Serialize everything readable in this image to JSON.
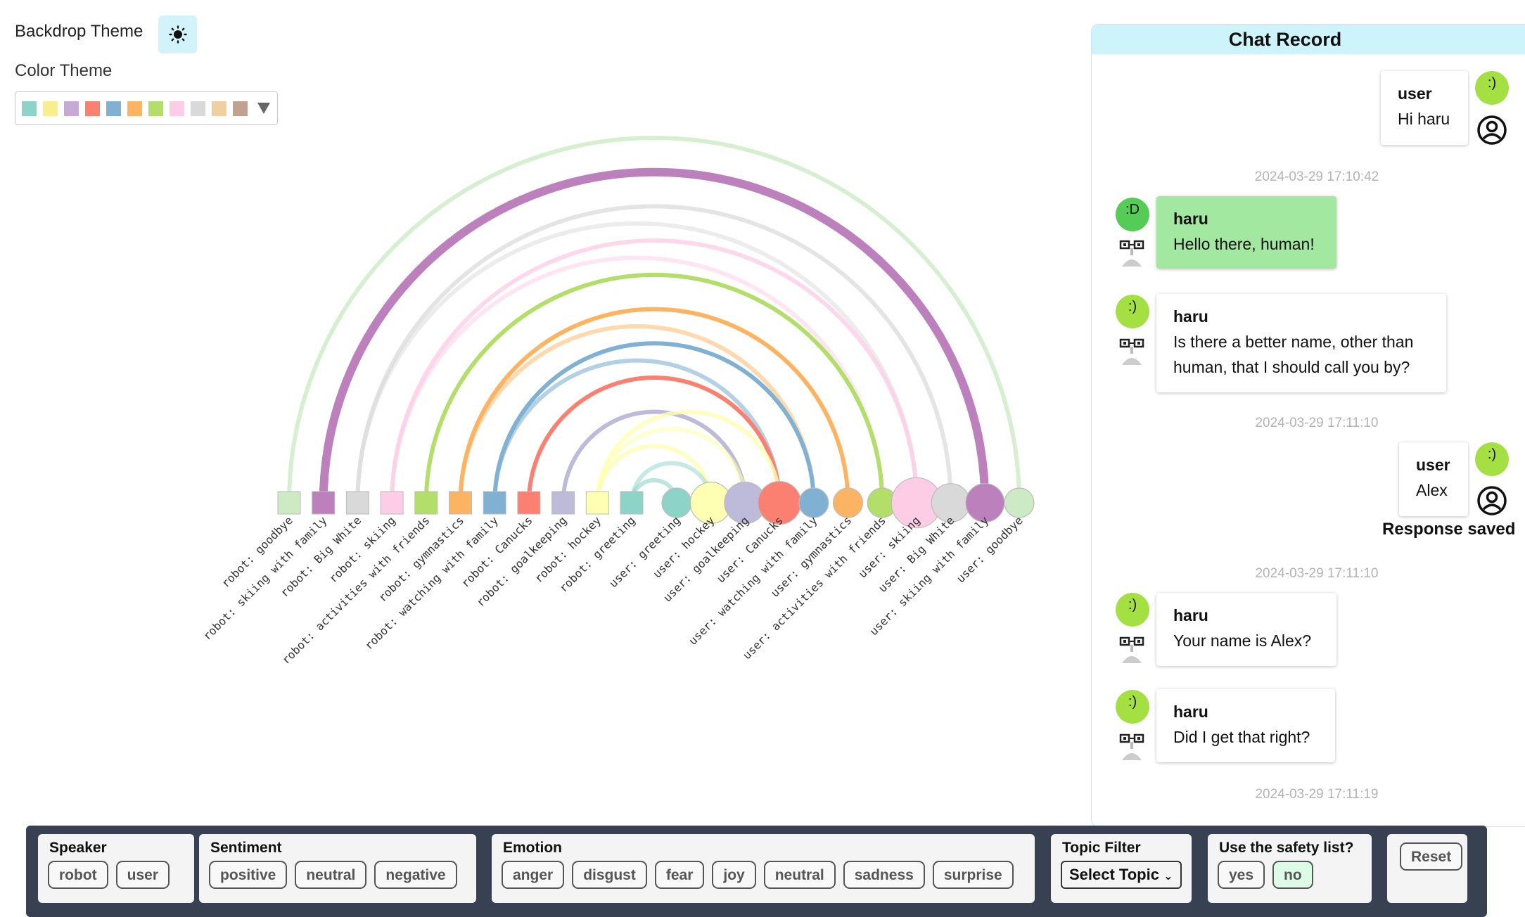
{
  "controls": {
    "backdrop_label": "Backdrop Theme",
    "color_label": "Color Theme",
    "swatches": [
      "#8dd3c7",
      "#f8ef8c",
      "#c8a8d4",
      "#fb8072",
      "#80b1d3",
      "#fdb462",
      "#b3de69",
      "#fccde5",
      "#d9d9d9",
      "#f0d0a0",
      "#c4a090"
    ]
  },
  "arc_chart": {
    "robot_nodes": [
      {
        "label": "robot: goodbye",
        "color": "#ccebc5"
      },
      {
        "label": "robot: skiing with family",
        "color": "#bc80bd"
      },
      {
        "label": "robot: Big White",
        "color": "#d9d9d9"
      },
      {
        "label": "robot: skiing",
        "color": "#fccde5"
      },
      {
        "label": "robot: activities with friends",
        "color": "#b3de69"
      },
      {
        "label": "robot: gymnastics",
        "color": "#fdb462"
      },
      {
        "label": "robot: watching with family",
        "color": "#80b1d3"
      },
      {
        "label": "robot: Canucks",
        "color": "#fb8072"
      },
      {
        "label": "robot: goalkeeping",
        "color": "#bebada"
      },
      {
        "label": "robot: hockey",
        "color": "#ffffb3"
      },
      {
        "label": "robot: greeting",
        "color": "#8dd3c7"
      }
    ],
    "user_nodes": [
      {
        "label": "user: greeting",
        "color": "#8dd3c7",
        "size": 1
      },
      {
        "label": "user: hockey",
        "color": "#ffffb3",
        "size": 1.4
      },
      {
        "label": "user: goalkeeping",
        "color": "#bebada",
        "size": 1.4
      },
      {
        "label": "user: Canucks",
        "color": "#fb8072",
        "size": 1.45
      },
      {
        "label": "user: watching with family",
        "color": "#80b1d3",
        "size": 1
      },
      {
        "label": "user: gymnastics",
        "color": "#fdb462",
        "size": 1
      },
      {
        "label": "user: activities with friends",
        "color": "#b3de69",
        "size": 1
      },
      {
        "label": "user: skiing",
        "color": "#fccde5",
        "size": 1.7
      },
      {
        "label": "user: Big White",
        "color": "#d9d9d9",
        "size": 1.3
      },
      {
        "label": "user: skiing with family",
        "color": "#bc80bd",
        "size": 1.3
      },
      {
        "label": "user: goodbye",
        "color": "#ccebc5",
        "size": 1
      }
    ],
    "links": [
      {
        "from": "robot: goodbye",
        "to": "user: goodbye",
        "weight": 1,
        "opacity": 0.8
      },
      {
        "from": "robot: skiing with family",
        "to": "user: skiing with family",
        "weight": 2,
        "opacity": 1
      },
      {
        "from": "robot: skiing with family",
        "to": "user: skiing with family",
        "weight": 1,
        "opacity": 0.5
      },
      {
        "from": "robot: Big White",
        "to": "user: Big White",
        "weight": 1,
        "opacity": 0.7
      },
      {
        "from": "robot: Big White",
        "to": "user: skiing",
        "weight": 1,
        "opacity": 0.5
      },
      {
        "from": "robot: skiing",
        "to": "user: skiing",
        "weight": 1,
        "opacity": 0.8
      },
      {
        "from": "robot: skiing",
        "to": "user: activities with friends",
        "weight": 1,
        "opacity": 0.5
      },
      {
        "from": "robot: activities with friends",
        "to": "user: activities with friends",
        "weight": 1,
        "opacity": 1
      },
      {
        "from": "robot: gymnastics",
        "to": "user: gymnastics",
        "weight": 1,
        "opacity": 1
      },
      {
        "from": "robot: gymnastics",
        "to": "user: watching with family",
        "weight": 1,
        "opacity": 0.5
      },
      {
        "from": "robot: watching with family",
        "to": "user: watching with family",
        "weight": 1,
        "opacity": 1
      },
      {
        "from": "robot: watching with family",
        "to": "user: Canucks",
        "weight": 1,
        "opacity": 0.6
      },
      {
        "from": "robot: Canucks",
        "to": "user: Canucks",
        "weight": 1,
        "opacity": 1
      },
      {
        "from": "robot: goalkeeping",
        "to": "user: goalkeeping",
        "weight": 1,
        "opacity": 1
      },
      {
        "from": "robot: hockey",
        "to": "user: Canucks",
        "weight": 1,
        "opacity": 0.8
      },
      {
        "from": "robot: hockey",
        "to": "user: hockey",
        "weight": 1,
        "opacity": 0.8
      },
      {
        "from": "robot: hockey",
        "to": "user: goalkeeping",
        "weight": 1,
        "opacity": 0.6
      },
      {
        "from": "robot: greeting",
        "to": "user: greeting",
        "weight": 1,
        "opacity": 0.6
      },
      {
        "from": "robot: greeting",
        "to": "user: hockey",
        "weight": 1,
        "opacity": 0.5
      }
    ]
  },
  "chat": {
    "title": "Chat Record",
    "msg1": {
      "who": "user",
      "text": "Hi haru",
      "emotion": ":)"
    },
    "ts1": "2024-03-29 17:10:42",
    "msg2": {
      "who": "haru",
      "text": "Hello there, human!",
      "emotion": ":D"
    },
    "msg3": {
      "who": "haru",
      "line1": "Is there a better name, other than",
      "line2": "human, that I should call you by?",
      "emotion": ":)"
    },
    "ts2": "2024-03-29 17:11:10",
    "msg4": {
      "who": "user",
      "text": "Alex",
      "emotion": ":)"
    },
    "saved": "Response saved",
    "ts3": "2024-03-29 17:11:10",
    "msg5": {
      "who": "haru",
      "text": "Your name is Alex?",
      "emotion": ":)"
    },
    "msg6": {
      "who": "haru",
      "text": "Did I get that right?",
      "emotion": ":)"
    },
    "ts4": "2024-03-29 17:11:19"
  },
  "filters": {
    "speaker": {
      "title": "Speaker",
      "options": [
        "robot",
        "user"
      ]
    },
    "sentiment": {
      "title": "Sentiment",
      "options": [
        "positive",
        "neutral",
        "negative"
      ]
    },
    "emotion": {
      "title": "Emotion",
      "options": [
        "anger",
        "disgust",
        "fear",
        "joy",
        "neutral",
        "sadness",
        "surprise"
      ]
    },
    "topic": {
      "title": "Topic Filter",
      "select_label": "Select Topic"
    },
    "safety": {
      "title": "Use the safety list?",
      "yes": "yes",
      "no": "no",
      "selected": "no"
    },
    "reset_label": "Reset"
  }
}
